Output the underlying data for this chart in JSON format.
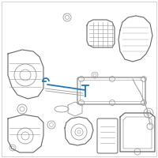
{
  "background_color": "#ffffff",
  "border_color": "#cccccc",
  "line_color": "#999999",
  "dark_line": "#666666",
  "highlight_color": "#2277bb",
  "fig_width": 2.0,
  "fig_height": 2.0,
  "dpi": 100
}
